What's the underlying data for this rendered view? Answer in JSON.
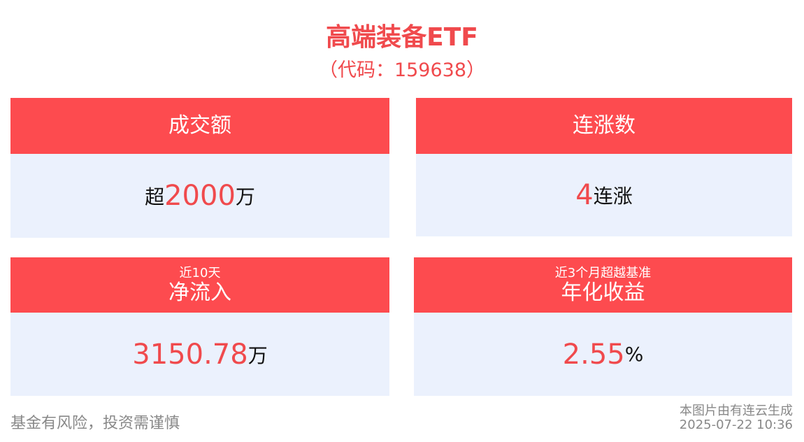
{
  "header": {
    "title": "高端装备ETF",
    "subtitle": "（代码：159638）"
  },
  "cards": [
    {
      "label": "成交额",
      "prefix": "超",
      "number": "2000",
      "suffix": "万"
    },
    {
      "label": "连涨数",
      "number": "4",
      "suffix": "连涨"
    },
    {
      "sublabel": "近10天",
      "label": "净流入",
      "number": "3150.78",
      "suffix": "万"
    },
    {
      "sublabel": "近3个月超越基准",
      "label": "年化收益",
      "number": "2.55",
      "suffix": "%"
    }
  ],
  "footer": {
    "disclaimer": "基金有风险，投资需谨慎",
    "source": "本图片由有连云生成",
    "timestamp": "2025-07-22 10:36"
  }
}
